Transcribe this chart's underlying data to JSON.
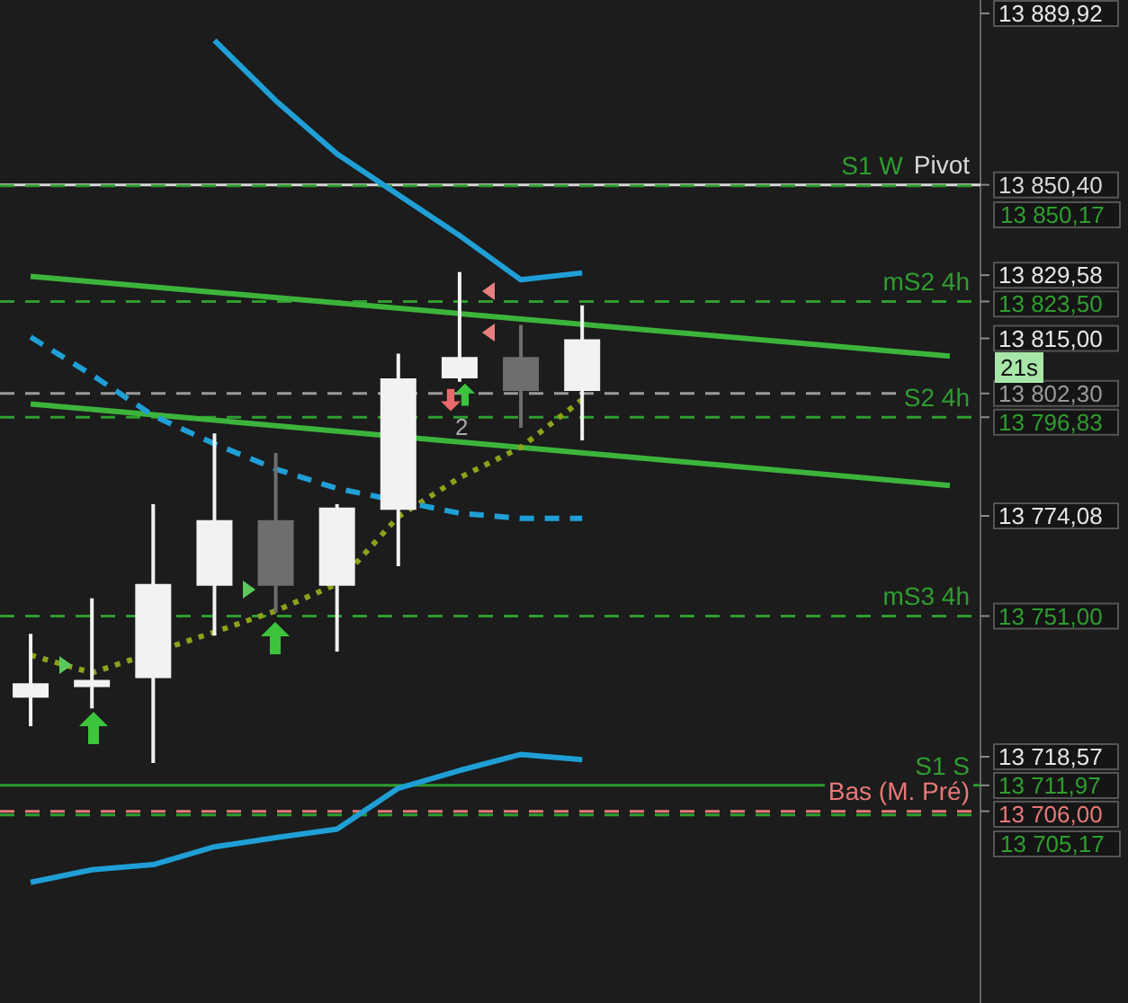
{
  "chart_data": {
    "type": "candlestick",
    "categories": [
      null,
      null,
      null,
      null,
      null,
      null,
      null,
      null,
      null,
      null,
      null,
      null,
      null,
      null,
      null,
      null
    ],
    "ohlc": [
      [
        13732.2,
        13746.9,
        13725.6,
        13735.5
      ],
      [
        13734.6,
        13755.1,
        13729.7,
        13736.3
      ],
      [
        13736.7,
        13776.8,
        13717.1,
        13758.4
      ],
      [
        13758.0,
        13793.1,
        13746.5,
        13773.1
      ],
      [
        13773.1,
        13788.6,
        13751.8,
        13758.0
      ],
      [
        13758.0,
        13776.8,
        13742.8,
        13776.0
      ],
      [
        13775.5,
        13811.5,
        13762.5,
        13805.8
      ],
      [
        13805.8,
        13830.3,
        13805.0,
        13810.7
      ],
      [
        13810.7,
        13818.1,
        13794.4,
        13802.9
      ],
      [
        13802.9,
        13822.6,
        13791.5,
        13814.8
      ],
      null,
      null,
      null,
      null,
      null,
      null
    ],
    "colors": [
      "#f2f2f2",
      "#f2f2f2",
      "#f2f2f2",
      "#f2f2f2",
      "#6e6e6e",
      "#f2f2f2",
      "#f2f2f2",
      "#f2f2f2",
      "#6e6e6e",
      "#f2f2f2",
      null,
      null,
      null,
      null,
      null,
      null
    ],
    "series": [
      {
        "type": "line",
        "color": "#1f9fd6",
        "line_style": "solid",
        "values": [
          null,
          null,
          null,
          13883.7,
          13869.8,
          13857.5,
          13848.1,
          13838.7,
          13828.5,
          13830.1,
          null,
          null,
          null,
          null,
          null,
          null
        ]
      },
      {
        "type": "line",
        "color": "#1f9fd6",
        "line_style": "dashed",
        "values": [
          13815.3,
          13806.6,
          13797.2,
          13790.7,
          13784.9,
          13780.4,
          null,
          13774.7,
          13773.5,
          13773.5,
          null,
          null,
          null,
          null,
          null,
          null
        ]
      },
      {
        "type": "line",
        "color": "#1f9fd6",
        "line_style": "solid",
        "values": [
          13689.6,
          13692.5,
          13693.7,
          13697.8,
          13699.9,
          13701.9,
          13711.3,
          13715.4,
          13719.1,
          13717.9,
          null,
          null,
          null,
          null,
          null,
          null
        ]
      },
      {
        "type": "line",
        "color": "#8da11b",
        "line_style": "dotted",
        "values": [
          13742.0,
          13737.9,
          null,
          13747.3,
          13752.2,
          13758.4,
          13773.9,
          13782.9,
          13789.9,
          13800.9,
          null,
          null,
          null,
          null,
          null,
          null
        ]
      },
      {
        "type": "line",
        "color": "#3cb43c",
        "line_style": "solid",
        "values": [
          13829.3,
          null,
          null,
          null,
          null,
          null,
          null,
          null,
          null,
          null,
          null,
          null,
          null,
          null,
          null,
          13810.9
        ]
      },
      {
        "type": "line",
        "color": "#3cb43c",
        "line_style": "solid",
        "values": [
          13799.9,
          null,
          null,
          null,
          null,
          null,
          null,
          null,
          null,
          null,
          null,
          null,
          null,
          null,
          null,
          13781.1
        ]
      }
    ],
    "ylim": [
      13661.8,
      13893
    ],
    "yticks": [
      {
        "value": 13889.92,
        "label": "13 889,92"
      },
      {
        "value": 13850.4,
        "label": "13 850,40"
      },
      {
        "value": 13829.58,
        "label": "13 829,58"
      },
      {
        "value": 13823.5,
        "label": "13 823,50"
      },
      {
        "value": 13815,
        "label": "13 815,00"
      },
      {
        "value": 13802.3,
        "label": "13 802,30"
      },
      {
        "value": 13796.83,
        "label": "13 796,83"
      },
      {
        "value": 13774.08,
        "label": "13 774,08"
      },
      {
        "value": 13751,
        "label": "13 751,00"
      },
      {
        "value": 13718.57,
        "label": "13 718,57"
      },
      {
        "value": 13711.97,
        "label": "13 711,97"
      },
      {
        "value": 13706,
        "label": "13 706,00"
      }
    ],
    "ref_lines": [
      {
        "axis": "y",
        "value": 13850.4,
        "label": "Pivot",
        "color": "#d8d8d8",
        "line_style": "solid"
      },
      {
        "axis": "y",
        "value": 13850.17,
        "label": "S1 W",
        "color": "#2e9e2e",
        "line_style": "dashed"
      },
      {
        "axis": "y",
        "value": 13823.5,
        "label": "mS2 4h",
        "color": "#2e9e2e",
        "line_style": "dashed"
      },
      {
        "axis": "y",
        "value": 13802.3,
        "color": "#9a9a9a",
        "line_style": "dashed"
      },
      {
        "axis": "y",
        "value": 13796.83,
        "label": "S2 4h",
        "color": "#2e9e2e",
        "line_style": "dashed"
      },
      {
        "axis": "y",
        "value": 13751,
        "label": "mS3 4h",
        "color": "#2e9e2e",
        "line_style": "dashed"
      },
      {
        "axis": "y",
        "value": 13711.97,
        "label": "S1 S",
        "color": "#2e9e2e",
        "line_style": "solid"
      },
      {
        "axis": "y",
        "value": 13706,
        "label": "Bas (M. Pré)",
        "color": "#e87878",
        "line_style": "dashed"
      },
      {
        "axis": "y",
        "value": 13705.17,
        "color": "#2e9e2e",
        "line_style": "dashed"
      }
    ],
    "annotations": [
      "21s",
      "2",
      "13 850,17",
      "13 705,17"
    ],
    "legend": false
  }
}
